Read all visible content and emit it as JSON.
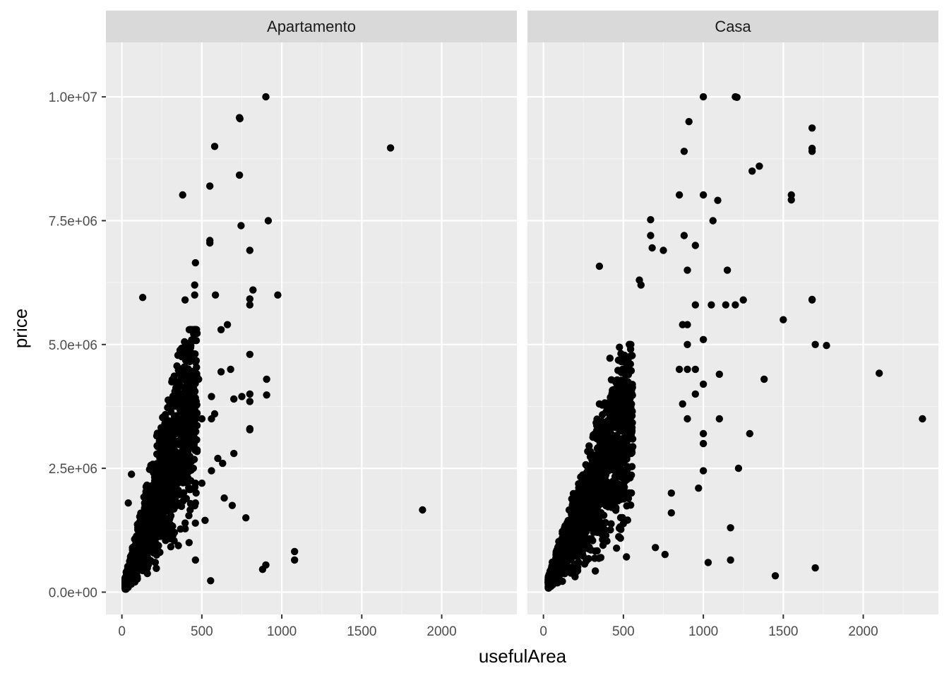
{
  "chart_data": {
    "type": "scatter",
    "xlabel": "usefulArea",
    "ylabel": "price",
    "xlim": [
      -100,
      2470
    ],
    "ylim": [
      -450000,
      11100000
    ],
    "x_ticks": [
      0,
      500,
      1000,
      1500,
      2000
    ],
    "x_tick_labels": [
      "0",
      "500",
      "1000",
      "1500",
      "2000"
    ],
    "y_ticks": [
      0,
      2500000,
      5000000,
      7500000,
      10000000
    ],
    "y_tick_labels": [
      "0.0e+00",
      "2.5e+06",
      "5.0e+06",
      "7.5e+06",
      "1.0e+07"
    ],
    "grid": true,
    "point_color": "#000000",
    "panel_bg": "#ebebeb",
    "strip_bg": "#d9d9d9",
    "facets": [
      {
        "label": "Apartamento",
        "points": [
          [
            900,
            10000000
          ],
          [
            735,
            9580000
          ],
          [
            738,
            9560000
          ],
          [
            580,
            9000000
          ],
          [
            1680,
            8970000
          ],
          [
            735,
            8420000
          ],
          [
            550,
            8200000
          ],
          [
            380,
            8020000
          ],
          [
            915,
            7500000
          ],
          [
            745,
            7400000
          ],
          [
            550,
            7100000
          ],
          [
            550,
            7050000
          ],
          [
            800,
            6900000
          ],
          [
            460,
            6650000
          ],
          [
            455,
            6200000
          ],
          [
            820,
            6100000
          ],
          [
            975,
            6000000
          ],
          [
            585,
            6000000
          ],
          [
            455,
            6000000
          ],
          [
            130,
            5950000
          ],
          [
            800,
            5920000
          ],
          [
            395,
            5900000
          ],
          [
            800,
            5800000
          ],
          [
            660,
            5400000
          ],
          [
            620,
            5300000
          ],
          [
            800,
            4800000
          ],
          [
            905,
            4300000
          ],
          [
            680,
            4500000
          ],
          [
            620,
            4450000
          ],
          [
            700,
            3900000
          ],
          [
            750,
            3950000
          ],
          [
            800,
            3850000
          ],
          [
            800,
            4000000
          ],
          [
            905,
            3980000
          ],
          [
            560,
            3950000
          ],
          [
            580,
            3600000
          ],
          [
            560,
            3500000
          ],
          [
            480,
            4300000
          ],
          [
            500,
            3500000
          ],
          [
            800,
            3300000
          ],
          [
            800,
            3280000
          ],
          [
            700,
            2800000
          ],
          [
            630,
            2600000
          ],
          [
            600,
            2700000
          ],
          [
            560,
            2450000
          ],
          [
            640,
            1900000
          ],
          [
            690,
            1750000
          ],
          [
            460,
            2200000
          ],
          [
            500,
            2200000
          ],
          [
            520,
            1450000
          ],
          [
            775,
            1500000
          ],
          [
            460,
            1800000
          ],
          [
            1880,
            1660000
          ],
          [
            1080,
            820000
          ],
          [
            1080,
            650000
          ],
          [
            900,
            550000
          ],
          [
            880,
            460000
          ],
          [
            555,
            230000
          ],
          [
            460,
            650000
          ],
          [
            420,
            1000000
          ],
          [
            60,
            2380000
          ],
          [
            40,
            1800000
          ]
        ],
        "cluster": {
          "count": 1800,
          "seed": 11,
          "x_range": [
            20,
            470
          ],
          "slope": 8500,
          "spread": 0.42,
          "y_max": 5300000
        }
      },
      {
        "label": "Casa",
        "points": [
          [
            1000,
            10000000
          ],
          [
            1200,
            10000000
          ],
          [
            1210,
            9990000
          ],
          [
            910,
            9500000
          ],
          [
            1680,
            9370000
          ],
          [
            880,
            8900000
          ],
          [
            1680,
            8900000
          ],
          [
            1680,
            8960000
          ],
          [
            1350,
            8600000
          ],
          [
            1305,
            8500000
          ],
          [
            850,
            8020000
          ],
          [
            1000,
            8020000
          ],
          [
            1550,
            8020000
          ],
          [
            1550,
            7920000
          ],
          [
            1090,
            7910000
          ],
          [
            670,
            7520000
          ],
          [
            1060,
            7500000
          ],
          [
            670,
            7200000
          ],
          [
            880,
            7200000
          ],
          [
            950,
            7000000
          ],
          [
            680,
            6950000
          ],
          [
            750,
            6900000
          ],
          [
            350,
            6580000
          ],
          [
            1150,
            6500000
          ],
          [
            900,
            6500000
          ],
          [
            600,
            6300000
          ],
          [
            610,
            6200000
          ],
          [
            1680,
            5900000
          ],
          [
            1680,
            5910000
          ],
          [
            1250,
            5900000
          ],
          [
            1200,
            5800000
          ],
          [
            1140,
            5800000
          ],
          [
            1050,
            5800000
          ],
          [
            950,
            5800000
          ],
          [
            1500,
            5500000
          ],
          [
            900,
            5400000
          ],
          [
            870,
            5400000
          ],
          [
            1000,
            5100000
          ],
          [
            1700,
            5000000
          ],
          [
            1770,
            4980000
          ],
          [
            900,
            5000000
          ],
          [
            2100,
            4420000
          ],
          [
            1100,
            4400000
          ],
          [
            1380,
            4300000
          ],
          [
            1000,
            4200000
          ],
          [
            950,
            4000000
          ],
          [
            850,
            4500000
          ],
          [
            900,
            4500000
          ],
          [
            950,
            4500000
          ],
          [
            870,
            3800000
          ],
          [
            2370,
            3500000
          ],
          [
            1100,
            3500000
          ],
          [
            900,
            3500000
          ],
          [
            1290,
            3200000
          ],
          [
            1000,
            3200000
          ],
          [
            1000,
            3000000
          ],
          [
            1220,
            2500000
          ],
          [
            1000,
            2450000
          ],
          [
            970,
            2100000
          ],
          [
            800,
            2000000
          ],
          [
            1170,
            1300000
          ],
          [
            1170,
            650000
          ],
          [
            1030,
            600000
          ],
          [
            1450,
            330000
          ],
          [
            1700,
            490000
          ],
          [
            760,
            760000
          ],
          [
            700,
            900000
          ],
          [
            800,
            1600000
          ],
          [
            350,
            3800000
          ],
          [
            400,
            3700000
          ]
        ],
        "cluster": {
          "count": 1800,
          "seed": 29,
          "x_range": [
            30,
            560
          ],
          "slope": 6500,
          "spread": 0.42,
          "y_max": 5000000
        }
      }
    ]
  }
}
